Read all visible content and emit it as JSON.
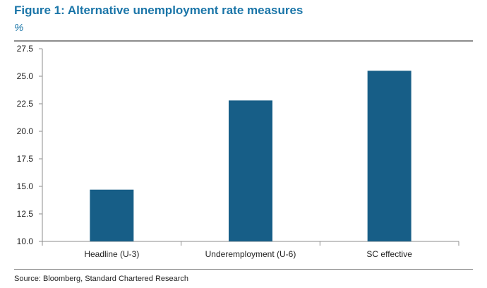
{
  "figure": {
    "title": "Figure 1: Alternative unemployment rate measures",
    "unit": "%",
    "source": "Source: Bloomberg, Standard Chartered Research"
  },
  "colors": {
    "bar": "#175e87",
    "title": "#1a75a8",
    "axis": "#8c8c8c"
  },
  "chart_data": {
    "type": "bar",
    "title": "Figure 1: Alternative unemployment rate measures",
    "xlabel": "",
    "ylabel": "%",
    "categories": [
      "Headline (U-3)",
      "Underemployment (U-6)",
      "SC effective"
    ],
    "values": [
      14.7,
      22.8,
      25.5
    ],
    "ylim": [
      10.0,
      27.5
    ],
    "yticks": [
      "10.0",
      "12.5",
      "15.0",
      "17.5",
      "20.0",
      "22.5",
      "25.0",
      "27.5"
    ],
    "grid": false,
    "legend": "none"
  }
}
